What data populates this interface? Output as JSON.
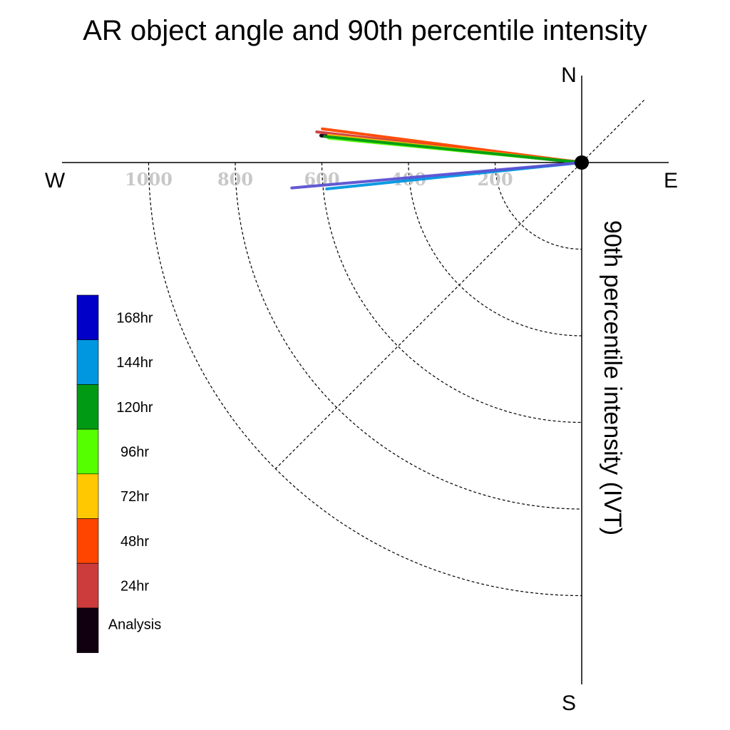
{
  "chart_data": {
    "type": "polar-vector",
    "title": "AR object angle and 90th percentile intensity",
    "radial_axis_label": "90th percentile intensity (IVT)",
    "compass": {
      "north": "N",
      "east": "E",
      "south": "S",
      "west": "W"
    },
    "radial_ticks": [
      {
        "value": 200,
        "label": "200"
      },
      {
        "value": 400,
        "label": "400"
      },
      {
        "value": 600,
        "label": "600"
      },
      {
        "value": 800,
        "label": "800"
      },
      {
        "value": 1000,
        "label": "1000"
      }
    ],
    "radial_max": 1200,
    "series": [
      {
        "name": "Analysis",
        "color": "#100010",
        "angle_deg": 174.1,
        "magnitude": 605
      },
      {
        "name": "24hr",
        "color": "#cc3c3c",
        "angle_deg": 173.4,
        "magnitude": 616
      },
      {
        "name": "48hr",
        "color": "#ff4500",
        "angle_deg": 172.6,
        "magnitude": 604
      },
      {
        "name": "72hr",
        "color": "#ffc800",
        "angle_deg": 173.9,
        "magnitude": 588
      },
      {
        "name": "96hr",
        "color": "#55ff00",
        "angle_deg": 174.5,
        "magnitude": 587
      },
      {
        "name": "120hr",
        "color": "#009a14",
        "angle_deg": 174.2,
        "magnitude": 597
      },
      {
        "name": "144hr",
        "color": "#0096e0",
        "angle_deg": 185.9,
        "magnitude": 592
      },
      {
        "name": "168hr",
        "color": "#5a50d2",
        "angle_deg": 185.0,
        "magnitude": 672
      }
    ],
    "legend": {
      "placement": "left",
      "entries": [
        {
          "label": "168hr",
          "color": "#0000c8"
        },
        {
          "label": "144hr",
          "color": "#0096e0"
        },
        {
          "label": "120hr",
          "color": "#009a14"
        },
        {
          "label": "96hr",
          "color": "#55ff00"
        },
        {
          "label": "72hr",
          "color": "#ffc800"
        },
        {
          "label": "48hr",
          "color": "#ff4500"
        },
        {
          "label": "24hr",
          "color": "#cc3c3c"
        },
        {
          "label": "Analysis",
          "color": "#100010"
        }
      ]
    }
  }
}
